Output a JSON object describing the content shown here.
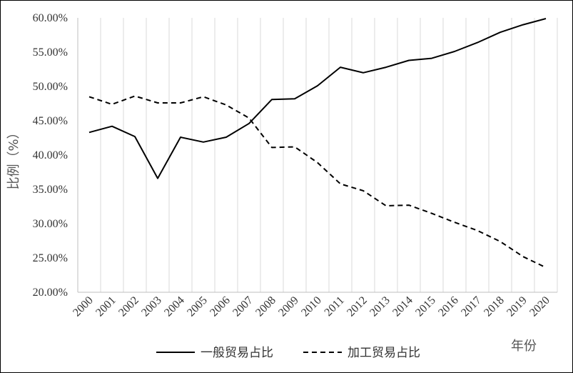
{
  "chart_data": {
    "type": "line",
    "title": "",
    "xlabel": "年份",
    "ylabel": "比例（%）",
    "x": [
      "2000",
      "2001",
      "2002",
      "2003",
      "2004",
      "2005",
      "2006",
      "2007",
      "2008",
      "2009",
      "2010",
      "2011",
      "2012",
      "2013",
      "2014",
      "2015",
      "2016",
      "2017",
      "2018",
      "2019",
      "2020"
    ],
    "ylim": [
      20,
      60
    ],
    "yticks": [
      "20.00%",
      "25.00%",
      "30.00%",
      "35.00%",
      "40.00%",
      "45.00%",
      "50.00%",
      "55.00%",
      "60.00%"
    ],
    "grid": "vertical",
    "legend": "bottom",
    "series": [
      {
        "name": "一般贸易占比",
        "style": "solid",
        "color": "#000000",
        "values": [
          43.3,
          44.2,
          42.7,
          36.6,
          42.6,
          41.9,
          42.6,
          44.6,
          48.1,
          48.2,
          50.1,
          52.8,
          52.0,
          52.8,
          53.8,
          54.1,
          55.1,
          56.4,
          57.9,
          59.0,
          59.9
        ]
      },
      {
        "name": "加工贸易占比",
        "style": "dashed",
        "color": "#000000",
        "values": [
          48.5,
          47.4,
          48.6,
          47.6,
          47.6,
          48.5,
          47.3,
          45.4,
          41.1,
          41.2,
          38.9,
          35.8,
          34.8,
          32.6,
          32.7,
          31.5,
          30.2,
          29.0,
          27.4,
          25.2,
          23.6
        ]
      }
    ]
  }
}
